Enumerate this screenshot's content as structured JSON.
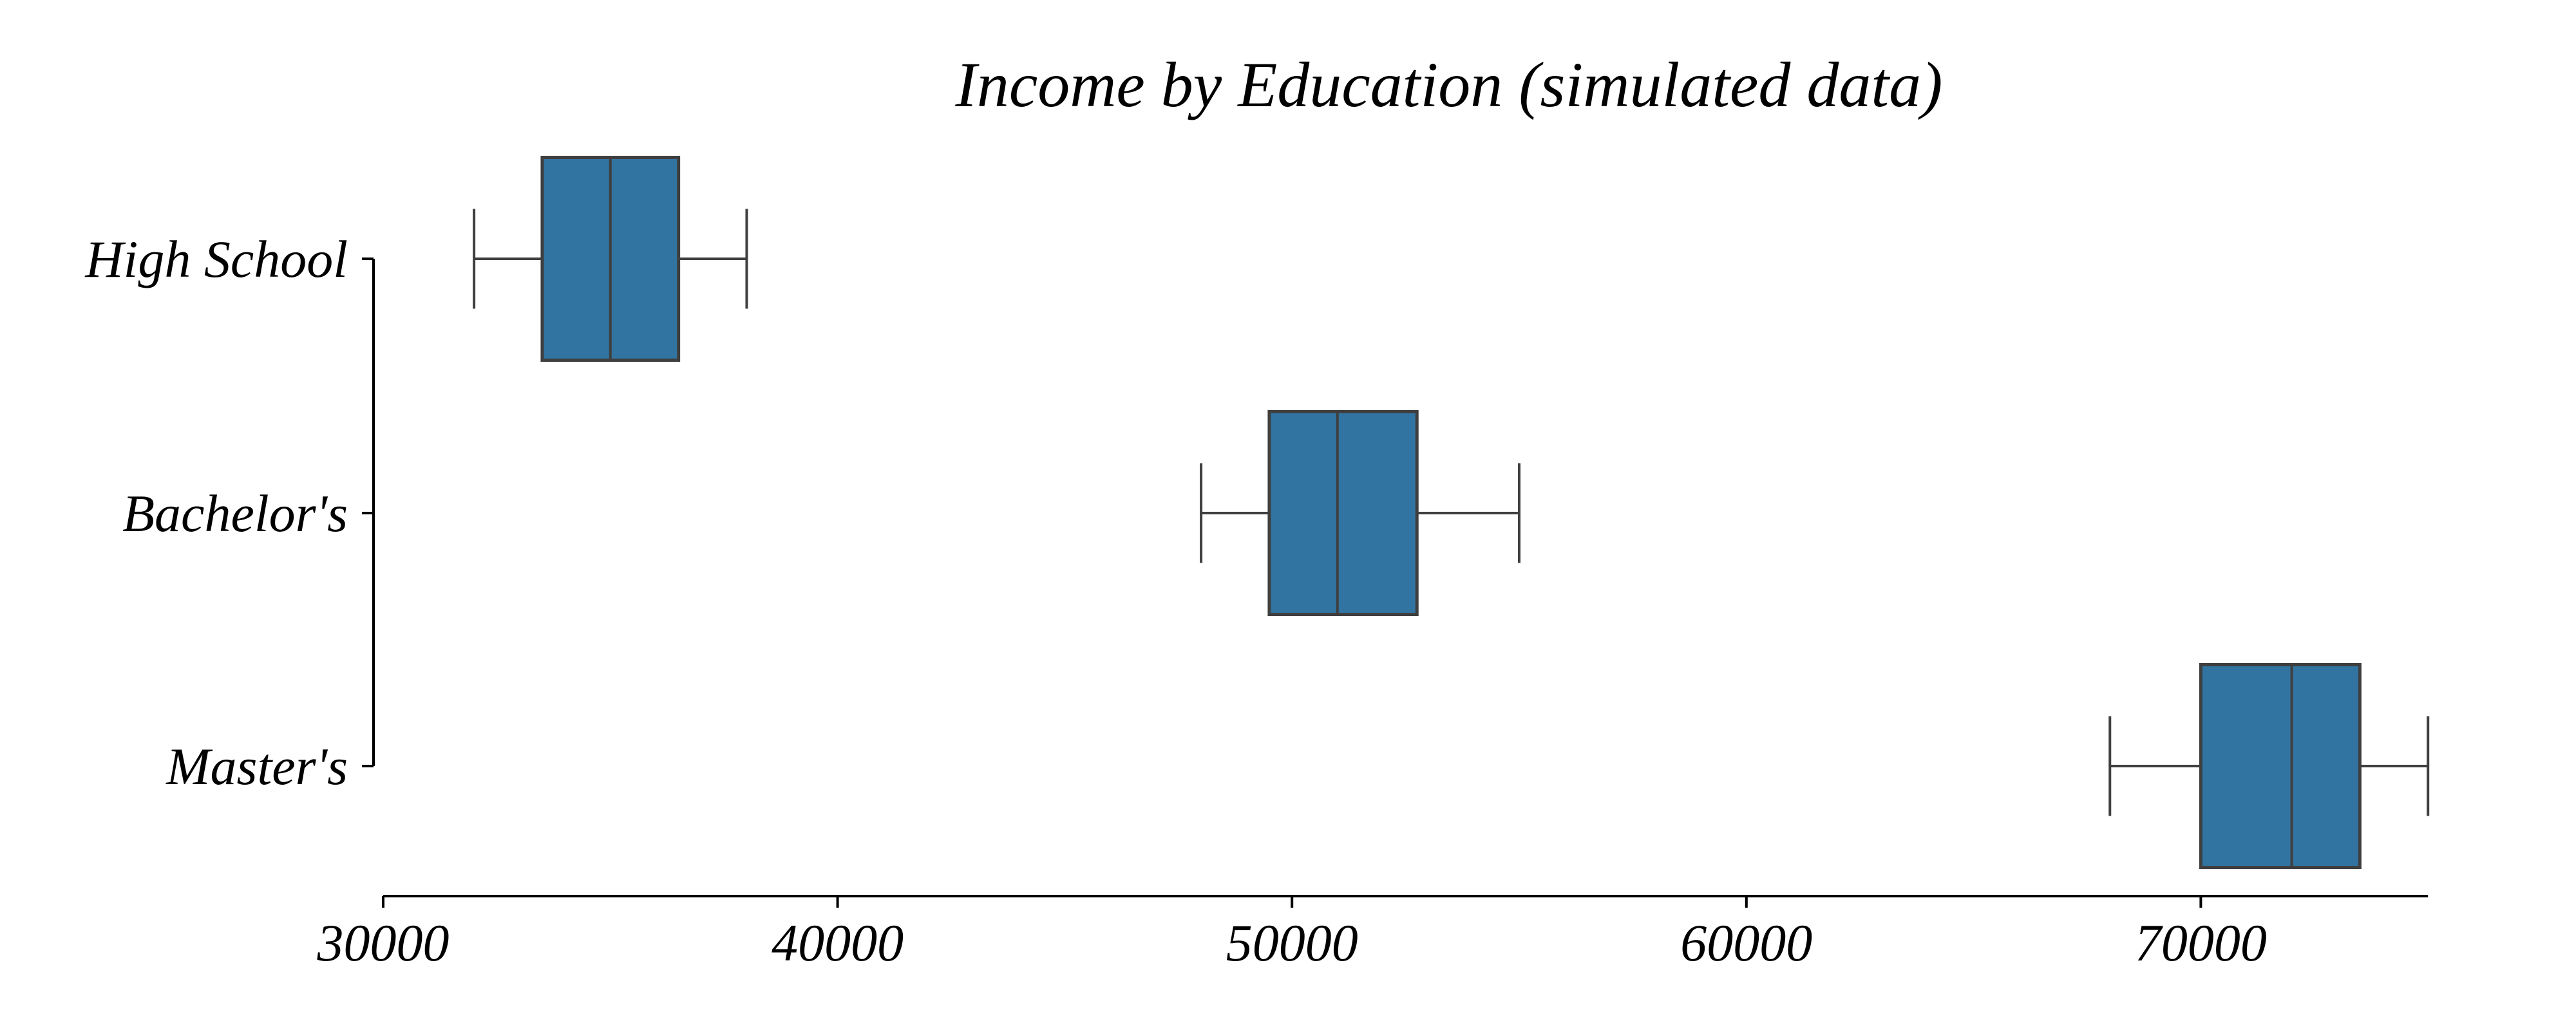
{
  "chart_data": {
    "type": "boxplot",
    "orientation": "horizontal",
    "title": "Income by Education (simulated data)",
    "xlabel": "",
    "ylabel": "",
    "xlim": [
      30000,
      75500
    ],
    "xticks": [
      30000,
      40000,
      50000,
      60000,
      70000
    ],
    "xtick_labels": [
      "30000",
      "40000",
      "50000",
      "60000",
      "70000"
    ],
    "categories": [
      "High School",
      "Bachelor's",
      "Master's"
    ],
    "boxes": [
      {
        "category": "High School",
        "whislo": 32000,
        "q1": 33500,
        "med": 35000,
        "q3": 36500,
        "whishi": 38000
      },
      {
        "category": "Bachelor's",
        "whislo": 48000,
        "q1": 49500,
        "med": 51000,
        "q3": 52750,
        "whishi": 55000
      },
      {
        "category": "Master's",
        "whislo": 68000,
        "q1": 70000,
        "med": 72000,
        "q3": 73500,
        "whishi": 75000
      }
    ],
    "grid": false,
    "colors": {
      "box_fill": "#3274a1",
      "box_line": "#3f3f3f",
      "axis": "#000000"
    }
  }
}
